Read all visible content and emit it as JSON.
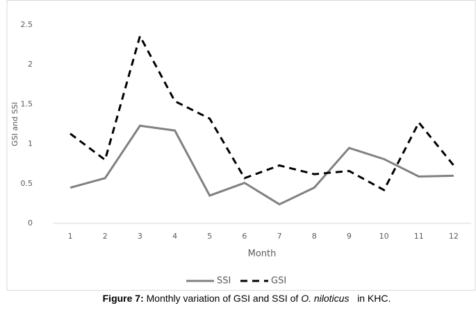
{
  "chart_data": {
    "type": "line",
    "y_label": "GSI and SSI",
    "x_label": "Month",
    "categories": [
      "1",
      "2",
      "3",
      "4",
      "5",
      "6",
      "7",
      "8",
      "9",
      "10",
      "11",
      "12"
    ],
    "series": [
      {
        "name": "SSI",
        "color": "#808080",
        "line_style": "solid",
        "values": [
          0.45,
          0.57,
          1.23,
          1.17,
          0.35,
          0.51,
          0.24,
          0.45,
          0.95,
          0.81,
          0.59,
          0.6
        ]
      },
      {
        "name": "GSI",
        "color": "#000000",
        "line_style": "dashed",
        "values": [
          1.13,
          0.8,
          2.36,
          1.54,
          1.32,
          0.57,
          0.73,
          0.62,
          0.66,
          0.42,
          1.27,
          0.73
        ]
      }
    ],
    "ylim": [
      0,
      2.5
    ],
    "yticks": [
      0,
      0.5,
      1,
      1.5,
      2,
      2.5
    ],
    "grid": false,
    "legend": "bottom",
    "caption": {
      "label": "Figure 7:",
      "text": " Monthly variation of GSI and SSI of ",
      "species": "O. niloticus",
      "suffix": "   in KHC."
    }
  }
}
